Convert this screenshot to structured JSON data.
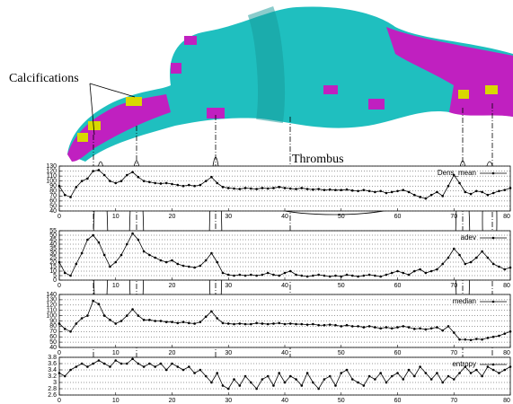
{
  "chart_data": [
    {
      "type": "line",
      "annotations": [
        "Calcifications",
        "Thrombus"
      ],
      "xlim": [
        0,
        80
      ],
      "xticks": [
        0,
        10,
        20,
        30,
        40,
        50,
        60,
        70,
        80
      ],
      "ylim": [
        40,
        130
      ],
      "yticks": [
        40,
        50,
        60,
        70,
        80,
        90,
        100,
        110,
        120,
        130
      ],
      "grid": true,
      "x": [
        0,
        1,
        2,
        3,
        4,
        5,
        6,
        7,
        8,
        9,
        10,
        11,
        12,
        13,
        14,
        15,
        16,
        17,
        18,
        19,
        20,
        21,
        22,
        23,
        24,
        25,
        26,
        27,
        28,
        29,
        30,
        31,
        32,
        33,
        34,
        35,
        36,
        37,
        38,
        39,
        40,
        41,
        42,
        43,
        44,
        45,
        46,
        47,
        48,
        49,
        50,
        51,
        52,
        53,
        54,
        55,
        56,
        57,
        58,
        59,
        60,
        61,
        62,
        63,
        64,
        65,
        66,
        67,
        68,
        69,
        70,
        71,
        72,
        73,
        74,
        75,
        76,
        77,
        78,
        79,
        80
      ],
      "series": [
        {
          "name": "Dens_mean",
          "color": "#000000",
          "values": [
            90,
            72,
            68,
            88,
            100,
            105,
            120,
            122,
            112,
            100,
            96,
            100,
            112,
            118,
            108,
            100,
            98,
            96,
            95,
            96,
            94,
            92,
            90,
            92,
            90,
            92,
            100,
            108,
            96,
            88,
            86,
            85,
            84,
            86,
            85,
            84,
            86,
            85,
            86,
            88,
            86,
            85,
            84,
            86,
            84,
            83,
            84,
            82,
            83,
            82,
            82,
            83,
            81,
            80,
            82,
            80,
            78,
            80,
            76,
            78,
            80,
            82,
            78,
            72,
            68,
            65,
            72,
            78,
            70,
            90,
            112,
            96,
            78,
            74,
            80,
            78,
            72,
            76,
            80,
            82,
            86
          ]
        }
      ]
    },
    {
      "type": "line",
      "xlim": [
        0,
        80
      ],
      "xticks": [
        0,
        10,
        20,
        30,
        40,
        50,
        60,
        70,
        80
      ],
      "ylim": [
        0,
        55
      ],
      "yticks": [
        0,
        5,
        10,
        15,
        20,
        25,
        30,
        35,
        40,
        45,
        50,
        55
      ],
      "grid": true,
      "x": [
        0,
        1,
        2,
        3,
        4,
        5,
        6,
        7,
        8,
        9,
        10,
        11,
        12,
        13,
        14,
        15,
        16,
        17,
        18,
        19,
        20,
        21,
        22,
        23,
        24,
        25,
        26,
        27,
        28,
        29,
        30,
        31,
        32,
        33,
        34,
        35,
        36,
        37,
        38,
        39,
        40,
        41,
        42,
        43,
        44,
        45,
        46,
        47,
        48,
        49,
        50,
        51,
        52,
        53,
        54,
        55,
        56,
        57,
        58,
        59,
        60,
        61,
        62,
        63,
        64,
        65,
        66,
        67,
        68,
        69,
        70,
        71,
        72,
        73,
        74,
        75,
        76,
        77,
        78,
        79,
        80
      ],
      "series": [
        {
          "name": "adev",
          "color": "#000000",
          "values": [
            20,
            8,
            5,
            18,
            30,
            45,
            50,
            42,
            28,
            15,
            20,
            28,
            40,
            52,
            45,
            32,
            28,
            25,
            22,
            20,
            22,
            18,
            16,
            15,
            14,
            16,
            22,
            30,
            20,
            8,
            6,
            5,
            6,
            5,
            6,
            5,
            6,
            8,
            6,
            5,
            8,
            10,
            6,
            5,
            4,
            5,
            6,
            5,
            4,
            5,
            4,
            6,
            5,
            4,
            5,
            6,
            5,
            4,
            6,
            8,
            10,
            8,
            6,
            10,
            12,
            8,
            10,
            12,
            18,
            25,
            35,
            28,
            18,
            20,
            25,
            32,
            25,
            18,
            15,
            12,
            14
          ]
        }
      ]
    },
    {
      "type": "line",
      "xlim": [
        0,
        80
      ],
      "xticks": [
        0,
        10,
        20,
        30,
        40,
        50,
        60,
        70,
        80
      ],
      "ylim": [
        40,
        140
      ],
      "yticks": [
        40,
        50,
        60,
        70,
        80,
        90,
        100,
        110,
        120,
        130,
        140
      ],
      "grid": true,
      "x": [
        0,
        1,
        2,
        3,
        4,
        5,
        6,
        7,
        8,
        9,
        10,
        11,
        12,
        13,
        14,
        15,
        16,
        17,
        18,
        19,
        20,
        21,
        22,
        23,
        24,
        25,
        26,
        27,
        28,
        29,
        30,
        31,
        32,
        33,
        34,
        35,
        36,
        37,
        38,
        39,
        40,
        41,
        42,
        43,
        44,
        45,
        46,
        47,
        48,
        49,
        50,
        51,
        52,
        53,
        54,
        55,
        56,
        57,
        58,
        59,
        60,
        61,
        62,
        63,
        64,
        65,
        66,
        67,
        68,
        69,
        70,
        71,
        72,
        73,
        74,
        75,
        76,
        77,
        78,
        79,
        80
      ],
      "series": [
        {
          "name": "median",
          "color": "#000000",
          "values": [
            85,
            75,
            70,
            85,
            95,
            100,
            128,
            122,
            100,
            92,
            85,
            90,
            100,
            112,
            100,
            92,
            92,
            90,
            90,
            88,
            88,
            86,
            88,
            86,
            85,
            88,
            98,
            108,
            95,
            86,
            85,
            84,
            85,
            84,
            84,
            86,
            85,
            84,
            85,
            86,
            84,
            85,
            84,
            84,
            83,
            84,
            82,
            82,
            83,
            82,
            80,
            82,
            80,
            80,
            78,
            80,
            78,
            76,
            78,
            76,
            78,
            80,
            78,
            75,
            76,
            74,
            76,
            78,
            72,
            80,
            68,
            55,
            55,
            54,
            56,
            55,
            58,
            60,
            62,
            66,
            70
          ]
        }
      ]
    },
    {
      "type": "line",
      "xlim": [
        0,
        80
      ],
      "xticks": [
        0,
        10,
        20,
        30,
        40,
        50,
        60,
        70,
        80
      ],
      "ylim": [
        2.6,
        3.8
      ],
      "yticks": [
        2.6,
        2.8,
        3,
        3.2,
        3.4,
        3.6,
        3.8
      ],
      "grid": true,
      "x": [
        0,
        1,
        2,
        3,
        4,
        5,
        6,
        7,
        8,
        9,
        10,
        11,
        12,
        13,
        14,
        15,
        16,
        17,
        18,
        19,
        20,
        21,
        22,
        23,
        24,
        25,
        26,
        27,
        28,
        29,
        30,
        31,
        32,
        33,
        34,
        35,
        36,
        37,
        38,
        39,
        40,
        41,
        42,
        43,
        44,
        45,
        46,
        47,
        48,
        49,
        50,
        51,
        52,
        53,
        54,
        55,
        56,
        57,
        58,
        59,
        60,
        61,
        62,
        63,
        64,
        65,
        66,
        67,
        68,
        69,
        70,
        71,
        72,
        73,
        74,
        75,
        76,
        77,
        78,
        79,
        80
      ],
      "series": [
        {
          "name": "entropy",
          "color": "#000000",
          "values": [
            3.3,
            3.2,
            3.4,
            3.5,
            3.6,
            3.5,
            3.6,
            3.7,
            3.6,
            3.5,
            3.7,
            3.6,
            3.6,
            3.75,
            3.6,
            3.5,
            3.6,
            3.5,
            3.6,
            3.4,
            3.6,
            3.5,
            3.4,
            3.5,
            3.3,
            3.4,
            3.2,
            3.0,
            3.3,
            2.9,
            2.8,
            3.1,
            2.9,
            3.2,
            3.0,
            2.8,
            3.1,
            3.2,
            2.9,
            3.3,
            3.0,
            3.2,
            3.1,
            2.9,
            3.3,
            3.0,
            2.8,
            3.1,
            3.2,
            2.9,
            3.3,
            3.4,
            3.1,
            3.0,
            2.9,
            3.2,
            3.1,
            3.3,
            3.0,
            3.2,
            3.3,
            3.1,
            3.4,
            3.2,
            3.5,
            3.3,
            3.1,
            3.3,
            3.0,
            3.2,
            3.1,
            3.3,
            3.5,
            3.3,
            3.4,
            3.2,
            3.5,
            3.4,
            3.3,
            3.4,
            3.5
          ]
        }
      ]
    }
  ]
}
